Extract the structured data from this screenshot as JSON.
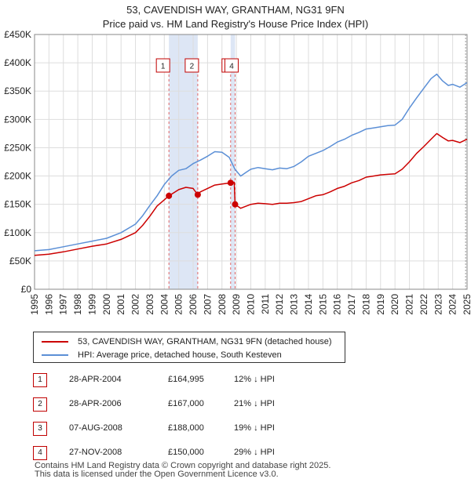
{
  "title": "53, CAVENDISH WAY, GRANTHAM, NG31 9FN",
  "subtitle": "Price paid vs. HM Land Registry's House Price Index (HPI)",
  "legend": {
    "property": "53, CAVENDISH WAY, GRANTHAM, NG31 9FN (detached house)",
    "hpi": "HPI: Average price, detached house, South Kesteven"
  },
  "sales": [
    {
      "num": "1",
      "date": "28-APR-2004",
      "price": "£164,995",
      "hpi": "12% ↓ HPI"
    },
    {
      "num": "2",
      "date": "28-APR-2006",
      "price": "£167,000",
      "hpi": "21% ↓ HPI"
    },
    {
      "num": "3",
      "date": "07-AUG-2008",
      "price": "£188,000",
      "hpi": "19% ↓ HPI"
    },
    {
      "num": "4",
      "date": "27-NOV-2008",
      "price": "£150,000",
      "hpi": "29% ↓ HPI"
    }
  ],
  "footer": {
    "line1": "Contains HM Land Registry data © Crown copyright and database right 2025.",
    "line2": "This data is licensed under the Open Government Licence v3.0."
  },
  "colors": {
    "property": "#cc0000",
    "hpi": "#5b8fd6",
    "band": "#dde6f5",
    "grid": "#dddddd"
  },
  "chart_data": {
    "type": "line",
    "title": "53, CAVENDISH WAY, GRANTHAM, NG31 9FN",
    "subtitle": "Price paid vs. HM Land Registry's House Price Index (HPI)",
    "xlabel": "",
    "ylabel": "",
    "xlim": [
      1995,
      2025
    ],
    "ylim": [
      0,
      450000
    ],
    "yticks": [
      0,
      50000,
      100000,
      150000,
      200000,
      250000,
      300000,
      350000,
      400000,
      450000
    ],
    "ytick_labels": [
      "£0",
      "£50K",
      "£100K",
      "£150K",
      "£200K",
      "£250K",
      "£300K",
      "£350K",
      "£400K",
      "£450K"
    ],
    "xticks": [
      1995,
      1996,
      1997,
      1998,
      1999,
      2000,
      2001,
      2002,
      2003,
      2004,
      2005,
      2006,
      2007,
      2008,
      2009,
      2010,
      2011,
      2012,
      2013,
      2014,
      2015,
      2016,
      2017,
      2018,
      2019,
      2020,
      2021,
      2022,
      2023,
      2024,
      2025
    ],
    "grid": true,
    "shaded_bands": [
      [
        2004.32,
        2006.32
      ],
      [
        2008.6,
        2008.91
      ]
    ],
    "series": [
      {
        "name": "HPI: Average price, detached house, South Kesteven",
        "x": [
          1995,
          1996,
          1997,
          1998,
          1999,
          2000,
          2001,
          2002,
          2002.5,
          2003,
          2003.5,
          2004,
          2004.5,
          2005,
          2005.5,
          2006,
          2006.5,
          2007,
          2007.5,
          2008,
          2008.5,
          2008.9,
          2009.3,
          2009.7,
          2010,
          2010.5,
          2011,
          2011.5,
          2012,
          2012.5,
          2013,
          2013.5,
          2014,
          2014.5,
          2015,
          2015.5,
          2016,
          2016.5,
          2017,
          2017.5,
          2018,
          2018.5,
          2019,
          2019.5,
          2020,
          2020.5,
          2021,
          2021.5,
          2022,
          2022.5,
          2022.9,
          2023.3,
          2023.7,
          2024,
          2024.5,
          2025
        ],
        "values": [
          68000,
          70000,
          75000,
          80000,
          85000,
          90000,
          100000,
          115000,
          130000,
          148000,
          165000,
          185000,
          200000,
          210000,
          213000,
          222000,
          228000,
          235000,
          243000,
          242000,
          233000,
          212000,
          200000,
          207000,
          212000,
          215000,
          213000,
          211000,
          214000,
          213000,
          217000,
          225000,
          235000,
          240000,
          245000,
          252000,
          260000,
          265000,
          272000,
          277000,
          283000,
          285000,
          287000,
          289000,
          290000,
          300000,
          320000,
          338000,
          355000,
          372000,
          380000,
          368000,
          360000,
          362000,
          357000,
          365000
        ]
      },
      {
        "name": "53, CAVENDISH WAY, GRANTHAM, NG31 9FN (detached house)",
        "x": [
          1995,
          1996,
          1997,
          1998,
          1999,
          2000,
          2001,
          2002,
          2002.5,
          2003,
          2003.5,
          2004,
          2004.32,
          2004.5,
          2005,
          2005.5,
          2006,
          2006.32,
          2006.5,
          2007,
          2007.5,
          2008,
          2008.6,
          2008.85,
          2008.91,
          2009.3,
          2009.7,
          2010,
          2010.5,
          2011,
          2011.5,
          2012,
          2012.5,
          2013,
          2013.5,
          2014,
          2014.5,
          2015,
          2015.5,
          2016,
          2016.5,
          2017,
          2017.5,
          2018,
          2018.5,
          2019,
          2019.5,
          2020,
          2020.5,
          2021,
          2021.5,
          2022,
          2022.5,
          2022.9,
          2023.3,
          2023.7,
          2024,
          2024.5,
          2025
        ],
        "values": [
          60000,
          62000,
          66000,
          71000,
          76000,
          80000,
          88000,
          100000,
          113000,
          129000,
          147000,
          158000,
          164995,
          168000,
          176000,
          180000,
          178000,
          167000,
          172000,
          178000,
          184000,
          186000,
          188000,
          189000,
          150000,
          143000,
          147000,
          150000,
          152000,
          151000,
          150000,
          152000,
          152000,
          153000,
          155000,
          160000,
          165000,
          167000,
          172000,
          178000,
          182000,
          188000,
          192000,
          198000,
          200000,
          202000,
          203000,
          204000,
          212000,
          225000,
          240000,
          252000,
          265000,
          275000,
          268000,
          262000,
          263000,
          259000,
          265000
        ]
      }
    ],
    "sale_points": [
      {
        "label": "1",
        "x": 2004.32,
        "y": 164995
      },
      {
        "label": "2",
        "x": 2006.32,
        "y": 167000
      },
      {
        "label": "3",
        "x": 2008.6,
        "y": 188000
      },
      {
        "label": "4",
        "x": 2008.91,
        "y": 150000
      }
    ]
  }
}
